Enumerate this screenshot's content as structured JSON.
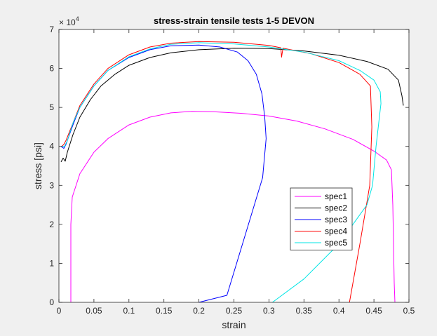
{
  "figure": {
    "background": "#f0f0f0"
  },
  "chart_data": {
    "type": "line",
    "title": "stress-strain tensile tests 1-5 DEVON",
    "xlabel": "strain",
    "ylabel": "stress [psi]",
    "y_exponent_label": "× 10",
    "y_exponent_power": "4",
    "xlim": [
      0,
      0.5
    ],
    "ylim": [
      0,
      70000
    ],
    "xticks": [
      0,
      0.05,
      0.1,
      0.15,
      0.2,
      0.25,
      0.3,
      0.35,
      0.4,
      0.45,
      0.5
    ],
    "xtick_labels": [
      "0",
      "0.05",
      "0.1",
      "0.15",
      "0.2",
      "0.25",
      "0.3",
      "0.35",
      "0.4",
      "0.45",
      "0.5"
    ],
    "yticks": [
      0,
      10000,
      20000,
      30000,
      40000,
      50000,
      60000,
      70000
    ],
    "ytick_labels": [
      "0",
      "1",
      "2",
      "3",
      "4",
      "5",
      "6",
      "7"
    ],
    "grid": false,
    "legend_position": "bottom-right",
    "series": [
      {
        "name": "spec1",
        "color": "#ff00ff",
        "points": [
          [
            0.017,
            0
          ],
          [
            0.017,
            10000
          ],
          [
            0.017,
            20000
          ],
          [
            0.019,
            27000
          ],
          [
            0.03,
            33000
          ],
          [
            0.05,
            38500
          ],
          [
            0.07,
            42000
          ],
          [
            0.1,
            45500
          ],
          [
            0.13,
            47500
          ],
          [
            0.16,
            48600
          ],
          [
            0.19,
            49000
          ],
          [
            0.22,
            48900
          ],
          [
            0.26,
            48500
          ],
          [
            0.3,
            47800
          ],
          [
            0.34,
            46500
          ],
          [
            0.38,
            44500
          ],
          [
            0.42,
            41800
          ],
          [
            0.45,
            38800
          ],
          [
            0.468,
            36500
          ],
          [
            0.475,
            34000
          ],
          [
            0.477,
            25000
          ],
          [
            0.478,
            15000
          ],
          [
            0.479,
            5000
          ],
          [
            0.48,
            0
          ]
        ]
      },
      {
        "name": "spec2",
        "color": "#000000",
        "points": [
          [
            0.003,
            36000
          ],
          [
            0.006,
            37000
          ],
          [
            0.009,
            36200
          ],
          [
            0.012,
            38500
          ],
          [
            0.02,
            43000
          ],
          [
            0.03,
            47500
          ],
          [
            0.045,
            52000
          ],
          [
            0.06,
            55500
          ],
          [
            0.08,
            58500
          ],
          [
            0.1,
            60800
          ],
          [
            0.13,
            62800
          ],
          [
            0.16,
            64000
          ],
          [
            0.2,
            64800
          ],
          [
            0.25,
            65200
          ],
          [
            0.3,
            65100
          ],
          [
            0.35,
            64500
          ],
          [
            0.4,
            63400
          ],
          [
            0.44,
            61800
          ],
          [
            0.47,
            59800
          ],
          [
            0.485,
            57000
          ],
          [
            0.49,
            53000
          ],
          [
            0.492,
            50500
          ]
        ]
      },
      {
        "name": "spec3",
        "color": "#0000ff",
        "points": [
          [
            0.003,
            40000
          ],
          [
            0.007,
            39500
          ],
          [
            0.01,
            40500
          ],
          [
            0.02,
            45500
          ],
          [
            0.03,
            50000
          ],
          [
            0.05,
            55500
          ],
          [
            0.07,
            59500
          ],
          [
            0.1,
            62800
          ],
          [
            0.13,
            64800
          ],
          [
            0.16,
            65800
          ],
          [
            0.2,
            66000
          ],
          [
            0.23,
            65500
          ],
          [
            0.255,
            64200
          ],
          [
            0.27,
            62000
          ],
          [
            0.282,
            58500
          ],
          [
            0.29,
            53500
          ],
          [
            0.294,
            47500
          ],
          [
            0.296,
            42000
          ],
          [
            0.295,
            40000
          ],
          [
            0.291,
            32000
          ],
          [
            0.24,
            1800
          ],
          [
            0.2,
            0
          ]
        ]
      },
      {
        "name": "spec4",
        "color": "#ff0000",
        "points": [
          [
            0.004,
            40000
          ],
          [
            0.007,
            40500
          ],
          [
            0.01,
            41500
          ],
          [
            0.02,
            46000
          ],
          [
            0.03,
            50500
          ],
          [
            0.05,
            56000
          ],
          [
            0.07,
            60000
          ],
          [
            0.1,
            63500
          ],
          [
            0.13,
            65500
          ],
          [
            0.16,
            66500
          ],
          [
            0.2,
            66900
          ],
          [
            0.25,
            66700
          ],
          [
            0.3,
            65900
          ],
          [
            0.317,
            65300
          ],
          [
            0.318,
            62900
          ],
          [
            0.32,
            65200
          ],
          [
            0.36,
            63800
          ],
          [
            0.4,
            61500
          ],
          [
            0.43,
            58500
          ],
          [
            0.445,
            55500
          ],
          [
            0.447,
            45000
          ],
          [
            0.444,
            30000
          ],
          [
            0.43,
            15000
          ],
          [
            0.415,
            0
          ]
        ]
      },
      {
        "name": "spec5",
        "color": "#00e5e5",
        "points": [
          [
            0.004,
            40000
          ],
          [
            0.008,
            40000
          ],
          [
            0.012,
            41500
          ],
          [
            0.02,
            46000
          ],
          [
            0.03,
            50000
          ],
          [
            0.05,
            55500
          ],
          [
            0.07,
            59500
          ],
          [
            0.1,
            63000
          ],
          [
            0.13,
            65000
          ],
          [
            0.16,
            66200
          ],
          [
            0.2,
            66600
          ],
          [
            0.25,
            66300
          ],
          [
            0.3,
            65500
          ],
          [
            0.35,
            64200
          ],
          [
            0.4,
            62000
          ],
          [
            0.43,
            59500
          ],
          [
            0.45,
            57000
          ],
          [
            0.459,
            54000
          ],
          [
            0.46,
            51000
          ],
          [
            0.453,
            40000
          ],
          [
            0.448,
            30000
          ],
          [
            0.44,
            25000
          ],
          [
            0.4,
            15000
          ],
          [
            0.35,
            6000
          ],
          [
            0.305,
            0
          ]
        ]
      }
    ]
  }
}
